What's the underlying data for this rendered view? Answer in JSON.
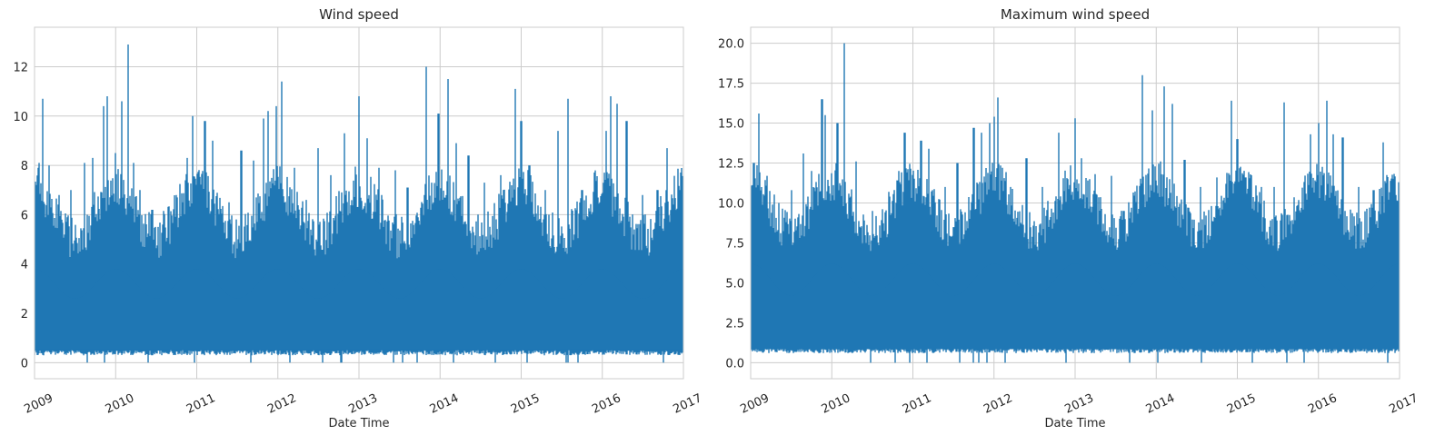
{
  "chart_data": [
    {
      "type": "line",
      "title": "Wind speed",
      "xlabel": "Date Time",
      "ylabel": "",
      "x_range": [
        "2009",
        "2017"
      ],
      "xticks": [
        "2009",
        "2010",
        "2011",
        "2012",
        "2013",
        "2014",
        "2015",
        "2016",
        "2017"
      ],
      "yticks": [
        "0",
        "2",
        "4",
        "6",
        "8",
        "10",
        "12"
      ],
      "ylim": [
        -0.65,
        13.6
      ],
      "grid": true,
      "color": "#1f77b4",
      "series": [
        {
          "peaks": [
            [
              2009.02,
              7.2
            ],
            [
              2009.06,
              8.1
            ],
            [
              2009.1,
              10.7
            ],
            [
              2009.18,
              8.0
            ],
            [
              2009.3,
              6.8
            ],
            [
              2009.45,
              7.0
            ],
            [
              2009.62,
              8.1
            ],
            [
              2009.72,
              8.3
            ],
            [
              2009.85,
              10.4
            ],
            [
              2009.9,
              10.8
            ],
            [
              2010.0,
              8.5
            ],
            [
              2010.08,
              10.6
            ],
            [
              2010.15,
              12.9
            ],
            [
              2010.22,
              8.1
            ],
            [
              2010.3,
              7.0
            ],
            [
              2010.45,
              6.2
            ],
            [
              2010.6,
              5.5
            ],
            [
              2010.75,
              6.8
            ],
            [
              2010.88,
              8.3
            ],
            [
              2010.95,
              10.0
            ],
            [
              2011.1,
              9.8
            ],
            [
              2011.2,
              9.0
            ],
            [
              2011.4,
              6.5
            ],
            [
              2011.55,
              8.6
            ],
            [
              2011.7,
              8.2
            ],
            [
              2011.82,
              9.9
            ],
            [
              2011.88,
              10.2
            ],
            [
              2011.98,
              10.4
            ],
            [
              2012.05,
              11.4
            ],
            [
              2012.2,
              7.9
            ],
            [
              2012.35,
              6.6
            ],
            [
              2012.5,
              8.7
            ],
            [
              2012.65,
              7.6
            ],
            [
              2012.82,
              9.3
            ],
            [
              2013.0,
              10.8
            ],
            [
              2013.1,
              9.1
            ],
            [
              2013.25,
              7.9
            ],
            [
              2013.45,
              7.8
            ],
            [
              2013.6,
              7.1
            ],
            [
              2013.83,
              12.0
            ],
            [
              2013.9,
              7.3
            ],
            [
              2013.98,
              10.1
            ],
            [
              2014.1,
              11.5
            ],
            [
              2014.2,
              8.9
            ],
            [
              2014.35,
              8.4
            ],
            [
              2014.55,
              7.3
            ],
            [
              2014.75,
              7.6
            ],
            [
              2014.93,
              11.1
            ],
            [
              2015.0,
              9.8
            ],
            [
              2015.1,
              8.0
            ],
            [
              2015.3,
              7.0
            ],
            [
              2015.45,
              9.4
            ],
            [
              2015.58,
              10.7
            ],
            [
              2015.75,
              7.0
            ],
            [
              2015.9,
              7.3
            ],
            [
              2016.05,
              9.4
            ],
            [
              2016.1,
              10.8
            ],
            [
              2016.18,
              10.5
            ],
            [
              2016.3,
              9.8
            ],
            [
              2016.5,
              6.8
            ],
            [
              2016.68,
              7.0
            ],
            [
              2016.8,
              8.7
            ],
            [
              2016.95,
              7.0
            ]
          ]
        }
      ]
    },
    {
      "type": "line",
      "title": "Maximum wind speed",
      "xlabel": "Date Time",
      "ylabel": "",
      "x_range": [
        "2009",
        "2017"
      ],
      "xticks": [
        "2009",
        "2010",
        "2011",
        "2012",
        "2013",
        "2014",
        "2015",
        "2016",
        "2017"
      ],
      "yticks": [
        "0.0",
        "2.5",
        "5.0",
        "7.5",
        "10.0",
        "12.5",
        "15.0",
        "17.5",
        "20.0"
      ],
      "ylim": [
        -1.0,
        21.0
      ],
      "grid": true,
      "color": "#1f77b4",
      "series": [
        {
          "peaks": [
            [
              2009.03,
              12.5
            ],
            [
              2009.1,
              15.6
            ],
            [
              2009.2,
              11.7
            ],
            [
              2009.35,
              10.0
            ],
            [
              2009.5,
              10.8
            ],
            [
              2009.65,
              13.1
            ],
            [
              2009.75,
              12.0
            ],
            [
              2009.88,
              16.5
            ],
            [
              2009.92,
              15.5
            ],
            [
              2010.07,
              15.0
            ],
            [
              2010.15,
              20.0
            ],
            [
              2010.3,
              12.6
            ],
            [
              2010.5,
              9.5
            ],
            [
              2010.7,
              10.7
            ],
            [
              2010.83,
              12.0
            ],
            [
              2010.9,
              14.4
            ],
            [
              2011.1,
              13.9
            ],
            [
              2011.2,
              13.4
            ],
            [
              2011.4,
              11.0
            ],
            [
              2011.55,
              12.5
            ],
            [
              2011.75,
              14.7
            ],
            [
              2011.85,
              14.4
            ],
            [
              2011.95,
              15.0
            ],
            [
              2012.0,
              15.4
            ],
            [
              2012.05,
              16.6
            ],
            [
              2012.2,
              11.0
            ],
            [
              2012.4,
              12.8
            ],
            [
              2012.6,
              11.0
            ],
            [
              2012.8,
              14.4
            ],
            [
              2013.0,
              15.3
            ],
            [
              2013.08,
              12.8
            ],
            [
              2013.25,
              11.8
            ],
            [
              2013.45,
              11.7
            ],
            [
              2013.6,
              9.5
            ],
            [
              2013.83,
              18.0
            ],
            [
              2013.95,
              15.8
            ],
            [
              2014.05,
              12.6
            ],
            [
              2014.1,
              17.3
            ],
            [
              2014.2,
              16.2
            ],
            [
              2014.35,
              12.7
            ],
            [
              2014.55,
              11.0
            ],
            [
              2014.75,
              11.6
            ],
            [
              2014.93,
              16.4
            ],
            [
              2015.0,
              14.0
            ],
            [
              2015.1,
              11.6
            ],
            [
              2015.3,
              11.0
            ],
            [
              2015.45,
              11.0
            ],
            [
              2015.58,
              16.3
            ],
            [
              2015.75,
              9.8
            ],
            [
              2015.9,
              14.3
            ],
            [
              2016.0,
              15.0
            ],
            [
              2016.1,
              16.4
            ],
            [
              2016.18,
              14.3
            ],
            [
              2016.3,
              14.1
            ],
            [
              2016.5,
              11.0
            ],
            [
              2016.68,
              10.8
            ],
            [
              2016.8,
              13.8
            ],
            [
              2016.95,
              10.5
            ]
          ]
        }
      ]
    }
  ]
}
